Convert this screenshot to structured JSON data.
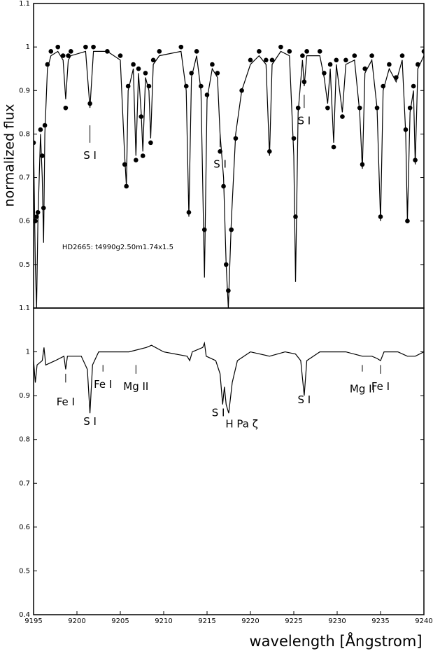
{
  "chart_data": [
    {
      "type": "line",
      "ylabel": "normalized flux",
      "ylim": [
        0.4,
        1.1
      ],
      "yticks": [
        0.5,
        0.6,
        0.7,
        0.8,
        0.9,
        1,
        1.1
      ],
      "xlim": [
        9195,
        9240
      ],
      "x": [
        9195.0,
        9195.2,
        9195.35,
        9195.5,
        9195.8,
        9196.0,
        9196.15,
        9196.3,
        9196.6,
        9197.0,
        9197.8,
        9198.4,
        9198.7,
        9199.0,
        9199.3,
        9201.0,
        9201.5,
        9201.9,
        9203.5,
        9205.0,
        9205.5,
        9205.7,
        9205.9,
        9206.5,
        9206.8,
        9207.1,
        9207.4,
        9207.6,
        9207.9,
        9208.3,
        9208.5,
        9208.8,
        9209.5,
        9212.0,
        9212.6,
        9212.9,
        9213.2,
        9213.8,
        9214.3,
        9214.7,
        9215.0,
        9215.6,
        9216.2,
        9216.5,
        9216.9,
        9217.2,
        9217.45,
        9217.8,
        9218.3,
        9219.0,
        9220.0,
        9221.0,
        9221.8,
        9222.2,
        9222.5,
        9223.5,
        9224.5,
        9225.0,
        9225.2,
        9225.5,
        9226.0,
        9226.2,
        9226.5,
        9228.0,
        9228.5,
        9228.9,
        9229.2,
        9229.6,
        9229.9,
        9230.6,
        9231.0,
        9232.0,
        9232.6,
        9232.9,
        9233.2,
        9234.0,
        9234.6,
        9235.0,
        9235.3,
        9236.0,
        9236.8,
        9237.5,
        9237.9,
        9238.1,
        9238.4,
        9238.8,
        9239.0,
        9239.3,
        9240.0
      ],
      "series": [
        {
          "color": "#000000",
          "mode": "line",
          "values": [
            0.78,
            0.5,
            0.4,
            0.6,
            0.8,
            0.7,
            0.55,
            0.8,
            0.95,
            0.98,
            0.99,
            0.97,
            0.88,
            0.97,
            0.98,
            0.99,
            0.86,
            0.99,
            0.99,
            0.97,
            0.75,
            0.68,
            0.9,
            0.95,
            0.75,
            0.94,
            0.85,
            0.76,
            0.93,
            0.9,
            0.79,
            0.96,
            0.98,
            0.99,
            0.9,
            0.61,
            0.93,
            0.98,
            0.9,
            0.47,
            0.88,
            0.95,
            0.93,
            0.8,
            0.7,
            0.5,
            0.4,
            0.6,
            0.8,
            0.9,
            0.96,
            0.98,
            0.96,
            0.75,
            0.96,
            0.99,
            0.98,
            0.75,
            0.46,
            0.85,
            0.97,
            0.91,
            0.98,
            0.98,
            0.93,
            0.87,
            0.95,
            0.78,
            0.96,
            0.85,
            0.96,
            0.97,
            0.85,
            0.72,
            0.94,
            0.97,
            0.86,
            0.6,
            0.9,
            0.95,
            0.92,
            0.97,
            0.8,
            0.6,
            0.85,
            0.9,
            0.73,
            0.95,
            0.98
          ]
        },
        {
          "color": "#000000",
          "mode": "markers",
          "values": [
            0.78,
            0.6,
            0.61,
            0.62,
            0.81,
            0.75,
            0.63,
            0.82,
            0.96,
            0.99,
            1.0,
            0.98,
            0.86,
            0.98,
            0.99,
            1.0,
            0.87,
            1.0,
            0.99,
            0.98,
            0.73,
            0.68,
            0.91,
            0.96,
            0.74,
            0.95,
            0.84,
            0.75,
            0.94,
            0.91,
            0.78,
            0.97,
            0.99,
            1.0,
            0.91,
            0.62,
            0.94,
            0.99,
            0.91,
            0.58,
            0.89,
            0.96,
            0.94,
            0.76,
            0.68,
            0.5,
            0.44,
            0.58,
            0.79,
            0.9,
            0.97,
            0.99,
            0.97,
            0.76,
            0.97,
            1.0,
            0.99,
            0.79,
            0.61,
            0.86,
            0.98,
            0.92,
            0.99,
            0.99,
            0.94,
            0.86,
            0.96,
            0.77,
            0.97,
            0.84,
            0.97,
            0.98,
            0.86,
            0.73,
            0.95,
            0.98,
            0.86,
            0.61,
            0.91,
            0.96,
            0.93,
            0.98,
            0.81,
            0.6,
            0.86,
            0.91,
            0.74,
            0.96,
            0.99
          ]
        }
      ],
      "annotations": [
        {
          "text": "S I",
          "x": 9201.5,
          "y": 0.75,
          "tick": [
            0.78,
            0.82
          ]
        },
        {
          "text": "S I",
          "x": 9216.5,
          "y": 0.73,
          "tick": [
            0.77,
            0.8
          ]
        },
        {
          "text": "S I",
          "x": 9226.2,
          "y": 0.83,
          "tick": [
            0.86,
            0.89
          ]
        },
        {
          "text": "HD2665: t4990g2.50m1.74x1.5",
          "x": 9198.3,
          "y": 0.54
        }
      ]
    },
    {
      "type": "line",
      "xlabel": "wavelength [Ångstrom]",
      "ylim": [
        0.4,
        1.1
      ],
      "yticks": [
        0.4,
        0.5,
        0.6,
        0.7,
        0.8,
        0.9,
        1,
        1.1
      ],
      "xlim": [
        9195,
        9240
      ],
      "xticks": [
        9195,
        9200,
        9205,
        9210,
        9215,
        9220,
        9225,
        9230,
        9235,
        9240
      ],
      "x": [
        9195.0,
        9195.2,
        9195.4,
        9196.0,
        9196.2,
        9196.4,
        9197.5,
        9198.5,
        9198.7,
        9198.9,
        9200.5,
        9201.2,
        9201.5,
        9201.8,
        9202.5,
        9205.0,
        9206.0,
        9208.0,
        9208.6,
        9210.0,
        9212.7,
        9213.0,
        9213.3,
        9214.5,
        9214.7,
        9214.9,
        9216.0,
        9216.5,
        9216.8,
        9217.0,
        9217.2,
        9217.5,
        9217.9,
        9218.5,
        9220.0,
        9222.2,
        9224.0,
        9225.2,
        9225.8,
        9226.2,
        9226.5,
        9228.0,
        9231.0,
        9232.9,
        9234.0,
        9234.6,
        9235.0,
        9235.4,
        9237.0,
        9238.1,
        9239.0,
        9240.0
      ],
      "series": [
        {
          "color": "#000000",
          "mode": "line",
          "values": [
            0.98,
            0.93,
            0.97,
            0.98,
            1.01,
            0.97,
            0.98,
            0.99,
            0.96,
            0.99,
            0.99,
            0.96,
            0.86,
            0.97,
            1.0,
            1.0,
            1.0,
            1.01,
            1.015,
            1.0,
            0.99,
            0.98,
            1.0,
            1.01,
            1.02,
            0.99,
            0.98,
            0.95,
            0.88,
            0.92,
            0.88,
            0.86,
            0.93,
            0.98,
            1.0,
            0.99,
            1.0,
            0.995,
            0.98,
            0.9,
            0.98,
            1.0,
            1.0,
            0.99,
            0.99,
            0.985,
            0.98,
            1.0,
            1.0,
            0.99,
            0.99,
            1.0
          ]
        }
      ],
      "annotations": [
        {
          "text": "Fe I",
          "x": 9198.7,
          "y": 0.885,
          "tick": [
            0.93,
            0.95
          ]
        },
        {
          "text": "S I",
          "x": 9201.5,
          "y": 0.84
        },
        {
          "text": "Fe I",
          "x": 9203.0,
          "y": 0.925,
          "tick": [
            0.955,
            0.97
          ]
        },
        {
          "text": "Mg II",
          "x": 9206.8,
          "y": 0.92,
          "tick": [
            0.95,
            0.97
          ]
        },
        {
          "text": "S I",
          "x": 9216.3,
          "y": 0.86
        },
        {
          "text": "H Pa ζ",
          "x": 9219.0,
          "y": 0.835
        },
        {
          "text": "S I",
          "x": 9226.2,
          "y": 0.89
        },
        {
          "text": "Mg II",
          "x": 9232.9,
          "y": 0.915,
          "tick": [
            0.955,
            0.97
          ]
        },
        {
          "text": "Fe I",
          "x": 9235.0,
          "y": 0.92,
          "tick": [
            0.95,
            0.97
          ]
        }
      ]
    }
  ]
}
